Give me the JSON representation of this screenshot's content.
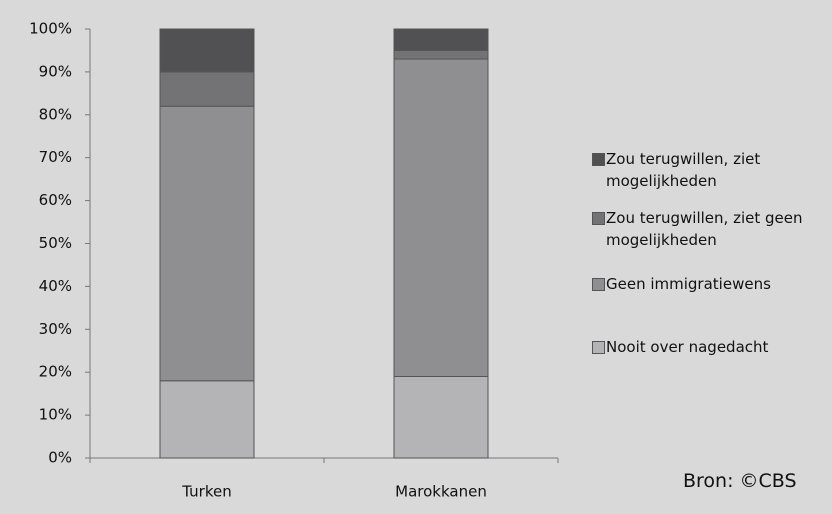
{
  "chart_data": {
    "type": "stacked_bar",
    "categories": [
      "Turken",
      "Marokkanen"
    ],
    "series": [
      {
        "name": "Nooit over nagedacht",
        "color": "#b4b4b6",
        "values": [
          18,
          19
        ]
      },
      {
        "name": "Geen immigratiewens",
        "color": "#8f8f91",
        "values": [
          64,
          74
        ]
      },
      {
        "name": "Zou terugwillen, ziet geen mogelijkheden",
        "color": "#737375",
        "values": [
          8,
          2
        ]
      },
      {
        "name": "Zou terugwillen, ziet mogelijkheden",
        "color": "#515153",
        "values": [
          10,
          5
        ]
      }
    ],
    "ylim": [
      0,
      100
    ],
    "yticks": [
      {
        "value": 0,
        "label": "0%"
      },
      {
        "value": 10,
        "label": "10%"
      },
      {
        "value": 20,
        "label": "20%"
      },
      {
        "value": 30,
        "label": "30%"
      },
      {
        "value": 40,
        "label": "40%"
      },
      {
        "value": 50,
        "label": "50%"
      },
      {
        "value": 60,
        "label": "60%"
      },
      {
        "value": 70,
        "label": "70%"
      },
      {
        "value": 80,
        "label": "80%"
      },
      {
        "value": 90,
        "label": "90%"
      },
      {
        "value": 100,
        "label": "100%"
      }
    ],
    "annotation": "Bron: ©CBS",
    "legend": "right"
  }
}
